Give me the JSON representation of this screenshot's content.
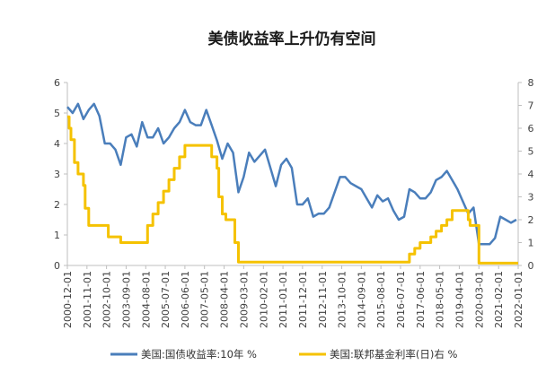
{
  "chart_data": {
    "type": "line",
    "title": "美债收益率上升仍有空间",
    "left_ylim": [
      0,
      6
    ],
    "left_yticks": [
      0,
      1,
      2,
      3,
      4,
      5,
      6
    ],
    "right_ylim": [
      0,
      8
    ],
    "right_yticks": [
      0,
      1,
      2,
      3,
      4,
      5,
      6,
      7,
      8
    ],
    "grid": false,
    "legend_position": "bottom",
    "xlim": [
      "2000-12-01",
      "2022-01-01"
    ],
    "x_ticks": [
      "2000-12-01",
      "2001-11-01",
      "2002-10-01",
      "2003-09-01",
      "2004-08-01",
      "2005-07-01",
      "2006-06-01",
      "2007-05-01",
      "2008-04-01",
      "2009-03-01",
      "2010-02-01",
      "2011-01-01",
      "2011-12-01",
      "2012-11-01",
      "2013-10-01",
      "2014-09-01",
      "2015-08-01",
      "2016-07-01",
      "2017-06-01",
      "2018-05-01",
      "2019-04-01",
      "2020-03-01",
      "2021-02-01",
      "2022-01-01"
    ],
    "series": [
      {
        "name": "美国:国债收益率:10年 %",
        "axis": "left",
        "color": "#4a7ebb",
        "x": [
          "2000-12-01",
          "2001-03-01",
          "2001-06-01",
          "2001-09-01",
          "2001-12-01",
          "2002-03-01",
          "2002-06-01",
          "2002-09-01",
          "2002-12-01",
          "2003-03-01",
          "2003-06-01",
          "2003-09-01",
          "2003-12-01",
          "2004-03-01",
          "2004-06-01",
          "2004-09-01",
          "2004-12-01",
          "2005-03-01",
          "2005-06-01",
          "2005-09-01",
          "2005-12-01",
          "2006-03-01",
          "2006-06-01",
          "2006-09-01",
          "2006-12-01",
          "2007-03-01",
          "2007-06-01",
          "2007-09-01",
          "2007-12-01",
          "2008-03-01",
          "2008-06-01",
          "2008-09-01",
          "2008-12-01",
          "2009-03-01",
          "2009-06-01",
          "2009-09-01",
          "2009-12-01",
          "2010-03-01",
          "2010-06-01",
          "2010-09-01",
          "2010-12-01",
          "2011-03-01",
          "2011-06-01",
          "2011-09-01",
          "2011-12-01",
          "2012-03-01",
          "2012-06-01",
          "2012-09-01",
          "2012-12-01",
          "2013-03-01",
          "2013-06-01",
          "2013-09-01",
          "2013-12-01",
          "2014-03-01",
          "2014-06-01",
          "2014-09-01",
          "2014-12-01",
          "2015-03-01",
          "2015-06-01",
          "2015-09-01",
          "2015-12-01",
          "2016-03-01",
          "2016-06-01",
          "2016-09-01",
          "2016-12-01",
          "2017-03-01",
          "2017-06-01",
          "2017-09-01",
          "2017-12-01",
          "2018-03-01",
          "2018-06-01",
          "2018-09-01",
          "2018-12-01",
          "2019-03-01",
          "2019-06-01",
          "2019-09-01",
          "2019-12-01",
          "2020-03-01",
          "2020-06-01",
          "2020-09-01",
          "2020-12-01",
          "2021-03-01",
          "2021-06-01",
          "2021-09-01",
          "2021-12-01"
        ],
        "values": [
          5.2,
          5.0,
          5.3,
          4.8,
          5.1,
          5.3,
          4.9,
          4.0,
          4.0,
          3.8,
          3.3,
          4.2,
          4.3,
          3.9,
          4.7,
          4.2,
          4.2,
          4.5,
          4.0,
          4.2,
          4.5,
          4.7,
          5.1,
          4.7,
          4.6,
          4.6,
          5.1,
          4.6,
          4.1,
          3.5,
          4.0,
          3.7,
          2.4,
          2.9,
          3.7,
          3.4,
          3.6,
          3.8,
          3.2,
          2.6,
          3.3,
          3.5,
          3.2,
          2.0,
          2.0,
          2.2,
          1.6,
          1.7,
          1.7,
          1.9,
          2.4,
          2.9,
          2.9,
          2.7,
          2.6,
          2.5,
          2.2,
          1.9,
          2.3,
          2.1,
          2.2,
          1.8,
          1.5,
          1.6,
          2.5,
          2.4,
          2.2,
          2.2,
          2.4,
          2.8,
          2.9,
          3.1,
          2.8,
          2.5,
          2.1,
          1.7,
          1.9,
          0.7,
          0.7,
          0.7,
          0.9,
          1.6,
          1.5,
          1.4,
          1.5
        ]
      },
      {
        "name": "美国:联邦基金利率(日)右 %",
        "axis": "right",
        "color": "#f5c200",
        "x": [
          "2000-12-01",
          "2001-01-01",
          "2001-02-01",
          "2001-04-01",
          "2001-06-01",
          "2001-09-01",
          "2001-10-01",
          "2001-12-01",
          "2002-06-01",
          "2002-11-01",
          "2003-06-01",
          "2004-06-01",
          "2004-09-01",
          "2004-12-01",
          "2005-03-01",
          "2005-06-01",
          "2005-09-01",
          "2005-12-01",
          "2006-03-01",
          "2006-06-01",
          "2007-08-01",
          "2007-09-01",
          "2007-12-01",
          "2008-01-01",
          "2008-03-01",
          "2008-05-01",
          "2008-10-01",
          "2008-12-01",
          "2015-12-01",
          "2016-12-01",
          "2017-03-01",
          "2017-06-01",
          "2017-12-01",
          "2018-03-01",
          "2018-06-01",
          "2018-09-01",
          "2018-12-01",
          "2019-08-01",
          "2019-09-01",
          "2019-10-01",
          "2020-03-01",
          "2022-01-01"
        ],
        "values": [
          6.5,
          6.0,
          5.5,
          4.5,
          4.0,
          3.5,
          2.5,
          1.75,
          1.75,
          1.25,
          1.0,
          1.0,
          1.75,
          2.25,
          2.75,
          3.25,
          3.75,
          4.25,
          4.75,
          5.25,
          5.25,
          4.75,
          4.25,
          3.0,
          2.25,
          2.0,
          1.0,
          0.15,
          0.15,
          0.5,
          0.75,
          1.0,
          1.25,
          1.5,
          1.75,
          2.0,
          2.4,
          2.4,
          2.0,
          1.75,
          0.1,
          0.1
        ]
      }
    ]
  }
}
